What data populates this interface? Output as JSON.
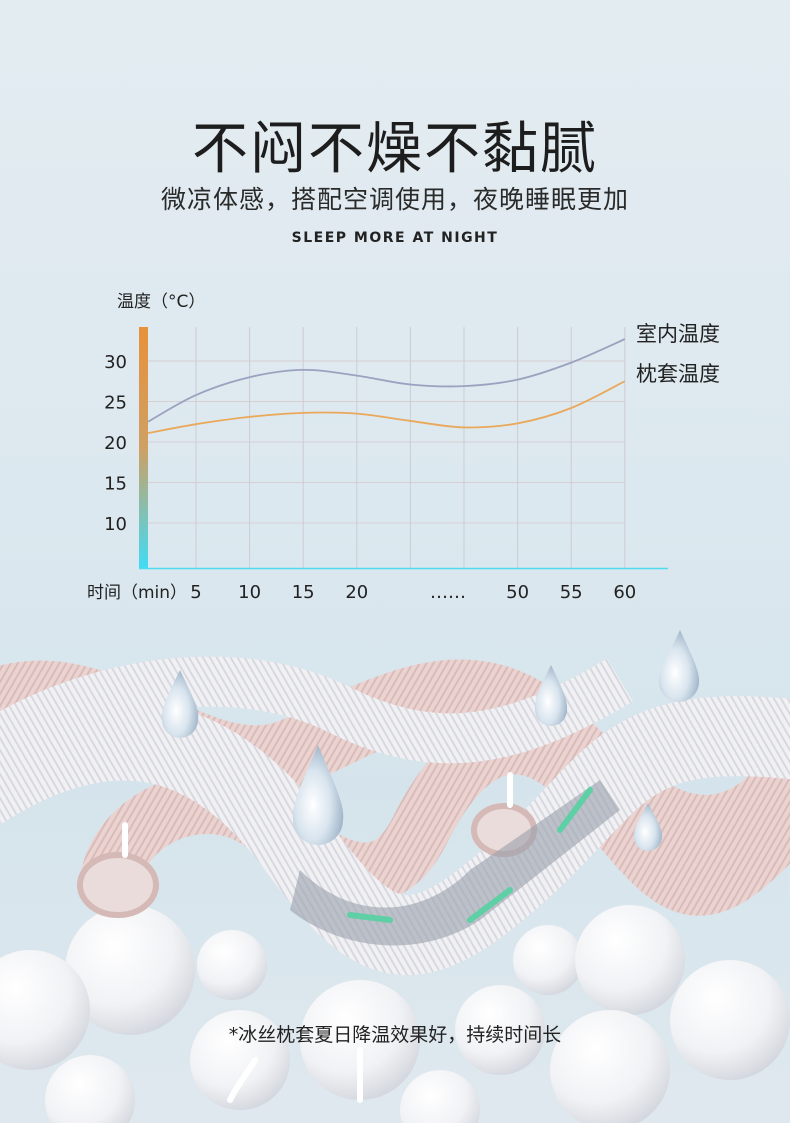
{
  "header": {
    "title": "不闷不燥不黏腻",
    "subtitle": "微凉体感，搭配空调使用，夜晚睡眠更加",
    "english": "SLEEP MORE AT NIGHT"
  },
  "chart_data": {
    "type": "line",
    "ylabel": "温度（°C）",
    "xlabel": "时间（min）",
    "x_tick_labels": [
      "",
      "5",
      "10",
      "15",
      "20",
      "",
      "……",
      "50",
      "55",
      "60"
    ],
    "y_ticks": [
      10,
      15,
      20,
      25,
      30
    ],
    "ylim": [
      4.5,
      34
    ],
    "grid": true,
    "legend_placement": "right",
    "series": [
      {
        "name": "室内温度",
        "color": "#9aa2bf",
        "values": [
          22.5,
          25.8,
          28.0,
          28.9,
          28.2,
          27.1,
          26.9,
          27.7,
          29.8,
          32.7
        ]
      },
      {
        "name": "枕套温度",
        "color": "#eaa85a",
        "values": [
          21.1,
          22.2,
          23.1,
          23.6,
          23.5,
          22.6,
          21.8,
          22.3,
          24.2,
          27.5
        ]
      }
    ],
    "axis_gradient": [
      "#e8913a",
      "#40dcf5"
    ]
  },
  "footer": {
    "caption": "*冰丝枕套夏日降温效果好，持续时间长"
  }
}
